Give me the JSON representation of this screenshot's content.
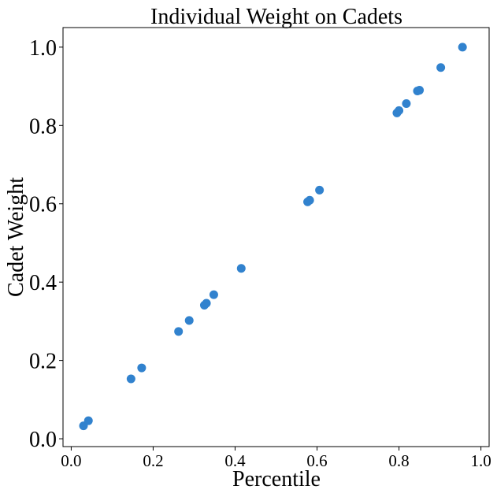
{
  "chart_data": {
    "type": "scatter",
    "title": "Individual Weight on Cadets",
    "xlabel": "Percentile",
    "ylabel": "Cadet Weight",
    "xlim": [
      -0.02,
      1.02
    ],
    "ylim": [
      -0.02,
      1.05
    ],
    "xticks": [
      0.0,
      0.2,
      0.4,
      0.6,
      0.8,
      1.0
    ],
    "xtick_labels": [
      "0.0",
      "0.2",
      "0.4",
      "0.6",
      "0.8",
      "1.0"
    ],
    "yticks": [
      0.0,
      0.2,
      0.4,
      0.6,
      0.8,
      1.0
    ],
    "ytick_labels": [
      "0.0",
      "0.2",
      "0.4",
      "0.6",
      "0.8",
      "1.0"
    ],
    "grid": false,
    "marker_color": "#3182CE",
    "points": [
      {
        "x": 0.03,
        "y": 0.033
      },
      {
        "x": 0.042,
        "y": 0.046
      },
      {
        "x": 0.146,
        "y": 0.153
      },
      {
        "x": 0.172,
        "y": 0.181
      },
      {
        "x": 0.262,
        "y": 0.274
      },
      {
        "x": 0.288,
        "y": 0.302
      },
      {
        "x": 0.325,
        "y": 0.341
      },
      {
        "x": 0.33,
        "y": 0.346
      },
      {
        "x": 0.348,
        "y": 0.368
      },
      {
        "x": 0.415,
        "y": 0.435
      },
      {
        "x": 0.577,
        "y": 0.605
      },
      {
        "x": 0.582,
        "y": 0.609
      },
      {
        "x": 0.606,
        "y": 0.635
      },
      {
        "x": 0.795,
        "y": 0.832
      },
      {
        "x": 0.8,
        "y": 0.838
      },
      {
        "x": 0.818,
        "y": 0.856
      },
      {
        "x": 0.845,
        "y": 0.888
      },
      {
        "x": 0.85,
        "y": 0.89
      },
      {
        "x": 0.902,
        "y": 0.948
      },
      {
        "x": 0.955,
        "y": 1.0
      }
    ]
  }
}
